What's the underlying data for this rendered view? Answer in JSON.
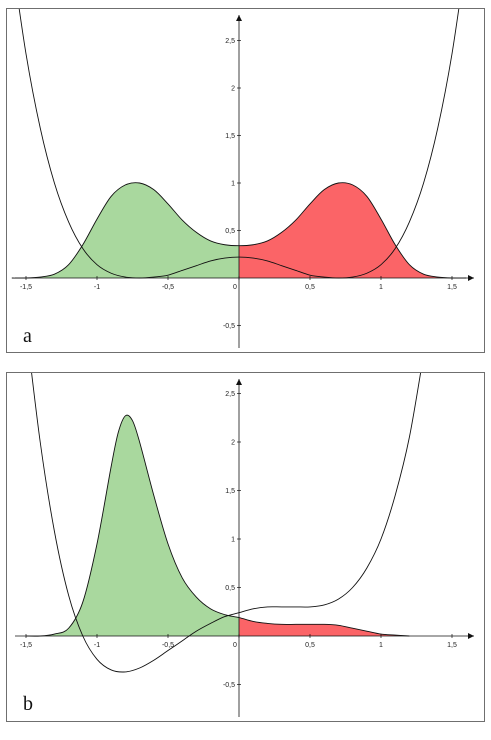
{
  "chart_data": [
    {
      "type": "area",
      "panel_label": "a",
      "xlim": [
        -1.65,
        1.65
      ],
      "ylim": [
        -0.78,
        2.7
      ],
      "x_ticks": [
        -1.5,
        -1,
        -0.5,
        0,
        0.5,
        1,
        1.5
      ],
      "x_tick_labels": [
        "-1,5",
        "-1",
        "-0,5",
        "0",
        "0,5",
        "1",
        "1,5"
      ],
      "y_ticks": [
        -0.5,
        0.5,
        1,
        1.5,
        2,
        2.5
      ],
      "y_tick_labels": [
        "-0,5",
        "0,5",
        "1",
        "1,5",
        "2",
        "2,5"
      ],
      "grid": false,
      "colors": {
        "left_fill": "#a9d89e",
        "right_fill": "#fb6467",
        "stroke": "#111111"
      },
      "series": [
        {
          "curve": "potential",
          "x": [
            -1.6,
            -1.5,
            -1.4,
            -1.3,
            -1.2,
            -1.1,
            -1.0,
            -0.9,
            -0.8,
            -0.7,
            -0.6,
            -0.5,
            -0.4,
            -0.3,
            -0.2,
            -0.1,
            0,
            0.1,
            0.2,
            0.3,
            0.4,
            0.5,
            0.6,
            0.7,
            0.8,
            0.9,
            1.0,
            1.1,
            1.2,
            1.3,
            1.4,
            1.5,
            1.6
          ],
          "y": [
            3.38,
            2.36,
            1.58,
            1.0,
            0.59,
            0.31,
            0.14,
            0.05,
            0.01,
            0.0,
            0.01,
            0.03,
            0.08,
            0.13,
            0.18,
            0.21,
            0.22,
            0.21,
            0.18,
            0.13,
            0.08,
            0.03,
            0.01,
            0.0,
            0.01,
            0.05,
            0.14,
            0.31,
            0.59,
            1.0,
            1.58,
            2.36,
            3.38
          ]
        },
        {
          "curve": "density",
          "x": [
            -1.6,
            -1.5,
            -1.4,
            -1.3,
            -1.2,
            -1.1,
            -1.0,
            -0.9,
            -0.8,
            -0.7,
            -0.6,
            -0.5,
            -0.4,
            -0.3,
            -0.2,
            -0.1,
            0,
            0.1,
            0.2,
            0.3,
            0.4,
            0.5,
            0.6,
            0.7,
            0.8,
            0.9,
            1.0,
            1.1,
            1.2,
            1.3,
            1.4,
            1.5,
            1.6
          ],
          "y": [
            0.0,
            0.0,
            0.01,
            0.04,
            0.14,
            0.35,
            0.62,
            0.86,
            0.98,
            1.0,
            0.93,
            0.78,
            0.61,
            0.48,
            0.39,
            0.35,
            0.34,
            0.35,
            0.39,
            0.48,
            0.61,
            0.78,
            0.93,
            1.0,
            0.98,
            0.86,
            0.62,
            0.35,
            0.14,
            0.04,
            0.01,
            0.0,
            0.0
          ]
        }
      ]
    },
    {
      "type": "area",
      "panel_label": "b",
      "xlim": [
        -1.65,
        1.65
      ],
      "ylim": [
        -0.78,
        2.7
      ],
      "x_ticks": [
        -1.5,
        -1,
        -0.5,
        0,
        0.5,
        1,
        1.5
      ],
      "x_tick_labels": [
        "-1,5",
        "-1",
        "-0,5",
        "0",
        "0,5",
        "1",
        "1,5"
      ],
      "y_ticks": [
        -0.5,
        0.5,
        1,
        1.5,
        2,
        2.5
      ],
      "y_tick_labels": [
        "-0,5",
        "0,5",
        "1",
        "1,5",
        "2",
        "2,5"
      ],
      "grid": false,
      "colors": {
        "left_fill": "#a9d89e",
        "right_fill": "#fb6467",
        "stroke": "#111111"
      },
      "series": [
        {
          "curve": "potential",
          "x": [
            -1.5,
            -1.4,
            -1.3,
            -1.2,
            -1.1,
            -1.0,
            -0.9,
            -0.8,
            -0.7,
            -0.6,
            -0.5,
            -0.4,
            -0.3,
            -0.2,
            -0.1,
            0,
            0.1,
            0.2,
            0.3,
            0.4,
            0.5,
            0.6,
            0.7,
            0.8,
            0.9,
            1.0,
            1.1,
            1.2,
            1.3
          ],
          "y": [
            3.2,
            2.0,
            1.08,
            0.42,
            0.0,
            -0.24,
            -0.35,
            -0.37,
            -0.33,
            -0.25,
            -0.15,
            -0.05,
            0.05,
            0.13,
            0.2,
            0.24,
            0.28,
            0.3,
            0.3,
            0.3,
            0.3,
            0.32,
            0.38,
            0.5,
            0.7,
            1.0,
            1.45,
            2.05,
            2.9
          ]
        },
        {
          "curve": "density",
          "x": [
            -1.5,
            -1.4,
            -1.3,
            -1.2,
            -1.1,
            -1.0,
            -0.9,
            -0.85,
            -0.8,
            -0.75,
            -0.7,
            -0.6,
            -0.5,
            -0.4,
            -0.3,
            -0.2,
            -0.1,
            0,
            0.1,
            0.2,
            0.3,
            0.4,
            0.5,
            0.6,
            0.7,
            0.8,
            0.9,
            1.0,
            1.1,
            1.2
          ],
          "y": [
            0.0,
            0.0,
            0.02,
            0.08,
            0.35,
            0.95,
            1.75,
            2.1,
            2.27,
            2.22,
            2.0,
            1.45,
            0.95,
            0.6,
            0.4,
            0.28,
            0.22,
            0.19,
            0.15,
            0.13,
            0.12,
            0.12,
            0.12,
            0.12,
            0.11,
            0.08,
            0.05,
            0.02,
            0.01,
            0.0
          ]
        }
      ]
    }
  ]
}
